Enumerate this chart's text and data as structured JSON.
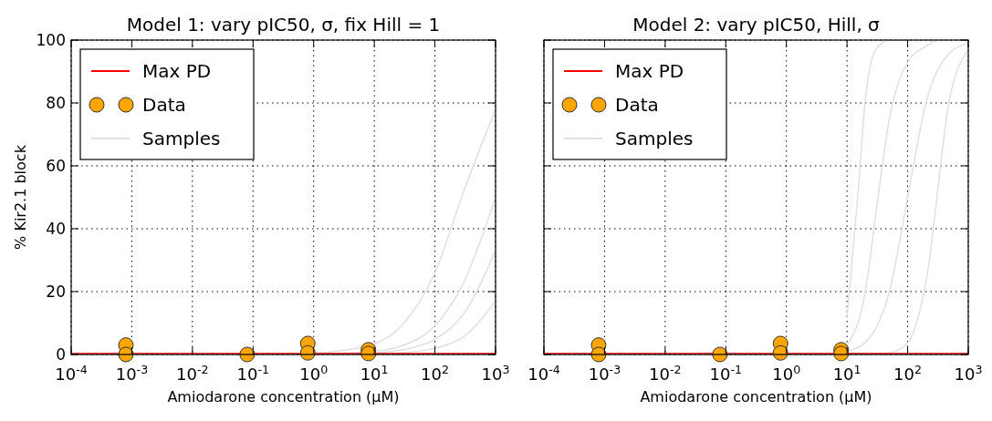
{
  "chart_data": [
    {
      "type": "line",
      "title": "Model 1: vary pIC50, σ, fix Hill = 1",
      "xlabel": "Amiodarone concentration (μM)",
      "ylabel": "% Kir2.1 block",
      "log": "x",
      "xlim": [
        0.0001,
        1000
      ],
      "ylim": [
        0,
        100
      ],
      "xticks": [
        {
          "value": 0.0001,
          "label": "10$^{-4}$"
        },
        {
          "value": 0.001,
          "label": "10$^{-3}$"
        },
        {
          "value": 0.01,
          "label": "10$^{-2}$"
        },
        {
          "value": 0.1,
          "label": "10$^{-1}$"
        },
        {
          "value": 1,
          "label": "10$^{0}$"
        },
        {
          "value": 10,
          "label": "10$^{1}$"
        },
        {
          "value": 100,
          "label": "10$^{2}$"
        },
        {
          "value": 1000,
          "label": "10$^{3}$"
        }
      ],
      "yticks": [
        0,
        20,
        40,
        60,
        80,
        100
      ],
      "grid": true,
      "legend": "top left",
      "series": [
        {
          "name": "Max PD",
          "type": "line",
          "line_style": "solid",
          "color": "#ff0000",
          "x": [
            0.0001,
            1000
          ],
          "values": [
            0.3,
            0.3
          ]
        },
        {
          "name": "Data",
          "type": "scatter",
          "marker": "circle",
          "color": "#ffa500",
          "x": [
            0.0008,
            0.0008,
            0.08,
            0.8,
            0.8,
            8,
            8
          ],
          "values": [
            3,
            0,
            0,
            3.5,
            0.5,
            1.5,
            0.3
          ]
        },
        {
          "name": "Samples",
          "type": "line",
          "color": "#e0e0e0",
          "x": [
            1,
            10,
            30,
            100,
            300,
            1000
          ],
          "values": [
            0.4,
            3.4,
            9.7,
            26,
            52,
            78
          ]
        },
        {
          "type": "line",
          "color": "#e0e0e0",
          "x": [
            1,
            10,
            30,
            100,
            300,
            1000
          ],
          "values": [
            0.1,
            1,
            2.9,
            9.1,
            23,
            50
          ]
        },
        {
          "type": "line",
          "color": "#e0e0e0",
          "x": [
            1,
            10,
            30,
            100,
            300,
            1000
          ],
          "values": [
            0,
            0.5,
            1.5,
            4.8,
            13,
            33
          ]
        },
        {
          "type": "line",
          "color": "#e0e0e0",
          "x": [
            1,
            10,
            30,
            100,
            300,
            1000
          ],
          "values": [
            0,
            0.2,
            0.6,
            2,
            5.7,
            17
          ]
        }
      ]
    },
    {
      "type": "line",
      "title": "Model 2: vary pIC50, Hill, σ",
      "xlabel": "Amiodarone concentration (μM)",
      "log": "x",
      "xlim": [
        0.0001,
        1000
      ],
      "ylim": [
        0,
        100
      ],
      "xticks": [
        {
          "value": 0.0001,
          "label": "10$^{-4}$"
        },
        {
          "value": 0.001,
          "label": "10$^{-3}$"
        },
        {
          "value": 0.01,
          "label": "10$^{-2}$"
        },
        {
          "value": 0.1,
          "label": "10$^{-1}$"
        },
        {
          "value": 1,
          "label": "10$^{0}$"
        },
        {
          "value": 10,
          "label": "10$^{1}$"
        },
        {
          "value": 100,
          "label": "10$^{2}$"
        },
        {
          "value": 1000,
          "label": "10$^{3}$"
        }
      ],
      "yticks": [
        0,
        20,
        40,
        60,
        80,
        100
      ],
      "tick_labels": "x",
      "grid": true,
      "legend": "top left",
      "series": [
        {
          "name": "Max PD",
          "type": "line",
          "line_style": "solid",
          "color": "#ff0000",
          "x": [
            0.0001,
            1000
          ],
          "values": [
            0.3,
            0.3
          ]
        },
        {
          "name": "Data",
          "type": "scatter",
          "marker": "circle",
          "color": "#ffa500",
          "x": [
            0.0008,
            0.0008,
            0.08,
            0.8,
            0.8,
            8,
            8
          ],
          "values": [
            3,
            0,
            0,
            3.5,
            0.5,
            1.5,
            0.3
          ]
        },
        {
          "name": "Samples",
          "type": "line",
          "color": "#e0e0e0",
          "x": [
            10,
            15,
            20,
            30,
            50,
            100
          ],
          "values": [
            12,
            50,
            81,
            97,
            100,
            100
          ]
        },
        {
          "type": "line",
          "color": "#e0e0e0",
          "x": [
            10,
            15,
            20,
            30,
            50,
            100,
            200,
            500,
            1000
          ],
          "values": [
            1,
            2.2,
            3.8,
            8.3,
            20,
            50,
            80,
            96,
            99
          ]
        },
        {
          "type": "line",
          "color": "#e0e0e0",
          "x": [
            10,
            30,
            50,
            100,
            200,
            500,
            1000
          ],
          "values": [
            0,
            0.1,
            0.5,
            3.6,
            23,
            82,
            97
          ]
        },
        {
          "type": "line",
          "color": "#e0e0e0",
          "x": [
            10,
            20,
            30,
            50,
            100,
            200,
            300
          ],
          "values": [
            3,
            20,
            45,
            75,
            93,
            98,
            100
          ]
        }
      ]
    }
  ]
}
